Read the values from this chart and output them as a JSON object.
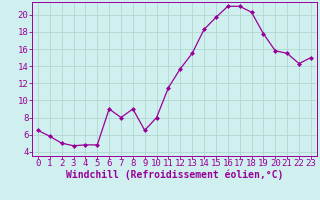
{
  "x": [
    0,
    1,
    2,
    3,
    4,
    5,
    6,
    7,
    8,
    9,
    10,
    11,
    12,
    13,
    14,
    15,
    16,
    17,
    18,
    19,
    20,
    21,
    22,
    23
  ],
  "y": [
    6.5,
    5.8,
    5.0,
    4.7,
    4.8,
    4.8,
    9.0,
    8.0,
    9.0,
    6.5,
    8.0,
    11.5,
    13.7,
    15.5,
    18.3,
    19.7,
    21.0,
    21.0,
    20.3,
    17.8,
    15.8,
    15.5,
    14.3,
    15.0
  ],
  "line_color": "#990099",
  "marker": "D",
  "marker_size": 2.0,
  "bg_color": "#cff0ee",
  "grid_color": "#b0d8d0",
  "xlabel": "Windchill (Refroidissement éolien,°C)",
  "xlim": [
    -0.5,
    23.5
  ],
  "ylim": [
    3.5,
    21.5
  ],
  "yticks": [
    4,
    6,
    8,
    10,
    12,
    14,
    16,
    18,
    20
  ],
  "xticks": [
    0,
    1,
    2,
    3,
    4,
    5,
    6,
    7,
    8,
    9,
    10,
    11,
    12,
    13,
    14,
    15,
    16,
    17,
    18,
    19,
    20,
    21,
    22,
    23
  ],
  "tick_color": "#990099",
  "label_color": "#990099",
  "font_size": 6.5,
  "xlabel_fontsize": 7.0,
  "linewidth": 0.9
}
